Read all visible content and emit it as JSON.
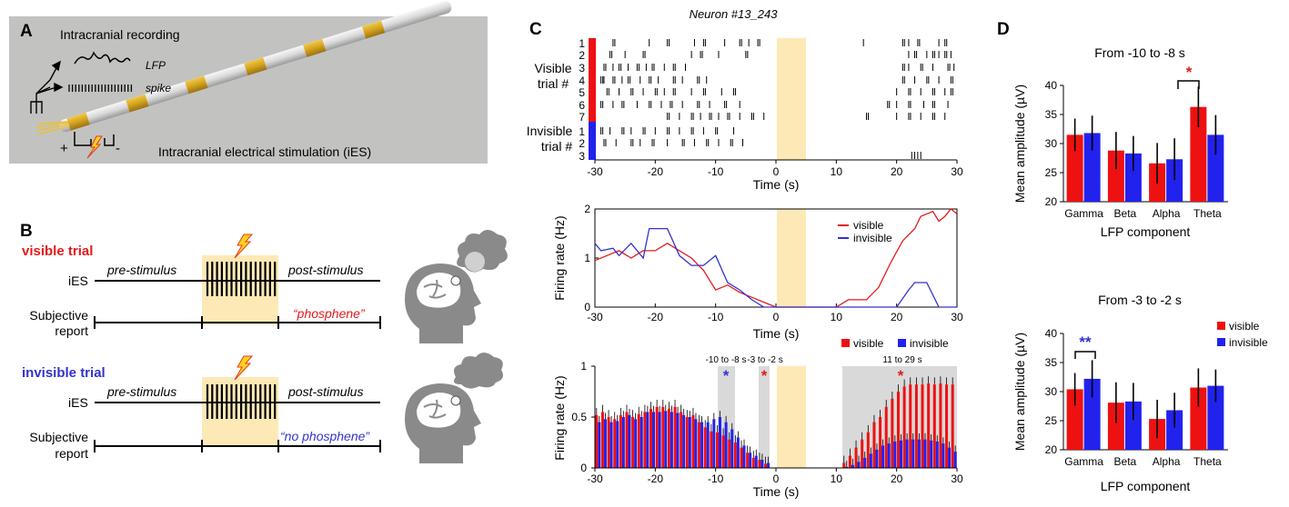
{
  "panels": {
    "a": "A",
    "b": "B",
    "c": "C",
    "d": "D"
  },
  "panel_a": {
    "title": "Intracranial recording",
    "lfp_label": "LFP",
    "spike_label": "spike",
    "stim_label": "Intracranial electrical stimulation (iES)",
    "plus": "+",
    "minus": "-",
    "bg_color": "#c2c3c0",
    "band_color": "#d3a21e"
  },
  "panel_b": {
    "visible_title": "visible trial",
    "invisible_title": "invisible trial",
    "ies_label": "iES",
    "pre_label": "pre-stimulus",
    "post_label": "post-stimulus",
    "report_label_1": "Subjective",
    "report_label_2": "report",
    "visible_report": "“phosphene”",
    "invisible_report": "“no phosphene”",
    "visible_color": "#e31a1c",
    "invisible_color": "#3333cc",
    "stim_bg": "#fde9b6"
  },
  "panel_c": {
    "neuron_title": "Neuron #13_243",
    "raster": {
      "visible_label_1": "Visible",
      "visible_label_2": "trial #",
      "invisible_label_1": "Invisible",
      "invisible_label_2": "trial #",
      "visible_rows": [
        "1",
        "2",
        "3",
        "4",
        "5",
        "6",
        "7"
      ],
      "invisible_rows": [
        "1",
        "2",
        "3"
      ],
      "xlabel": "Time (s)",
      "xticks": [
        -30,
        -20,
        -10,
        0,
        10,
        20,
        30
      ],
      "stim_window": [
        0,
        5
      ]
    },
    "rate_line": {
      "xlabel": "Time (s)",
      "ylabel": "Firing rate (Hz)",
      "yticks": [
        0,
        1,
        2
      ],
      "xticks": [
        -30,
        -20,
        -10,
        0,
        10,
        20,
        30
      ],
      "legend_visible": "visible",
      "legend_invisible": "invisible"
    },
    "rate_bars": {
      "xlabel": "Time (s)",
      "ylabel": "Firing rate (Hz)",
      "yticks": [
        0,
        0.5,
        1
      ],
      "xticks": [
        -30,
        -20,
        -10,
        0,
        10,
        20,
        30
      ],
      "legend_visible": "visible",
      "legend_invisible": "invisible",
      "windows": [
        {
          "label": "-10 to -8 s",
          "range": [
            -10,
            -8
          ],
          "star": "*",
          "star_color": "#3333cc"
        },
        {
          "label": "-3 to -2 s",
          "range": [
            -3,
            -2
          ],
          "star": "*",
          "star_color": "#e31a1c"
        },
        {
          "label": "11 to 29 s",
          "range": [
            11,
            29
          ],
          "star": "*",
          "star_color": "#e31a1c"
        }
      ]
    }
  },
  "panel_d": {
    "top_title": "From -10 to -8 s",
    "bottom_title": "From -3 to -2 s",
    "ylabel": "Mean amplitude (µV)",
    "xlabel": "LFP component",
    "legend_visible": "visible",
    "legend_invisible": "invisible",
    "top_star": "*",
    "bottom_star": "**"
  },
  "chart_data": [
    {
      "type": "line",
      "title": "Neuron #13_243",
      "xlabel": "Time (s)",
      "ylabel": "Firing rate (Hz)",
      "xlim": [
        -30,
        30
      ],
      "ylim": [
        0,
        2
      ],
      "series": [
        {
          "name": "visible",
          "color": "#e31a1c",
          "points": [
            [
              -30,
              0.95
            ],
            [
              -28,
              1.05
            ],
            [
              -26,
              1.15
            ],
            [
              -24,
              1.0
            ],
            [
              -22,
              1.15
            ],
            [
              -20,
              1.15
            ],
            [
              -18,
              1.3
            ],
            [
              -16,
              1.15
            ],
            [
              -14,
              1.0
            ],
            [
              -12,
              0.75
            ],
            [
              -11,
              0.55
            ],
            [
              -10,
              0.35
            ],
            [
              -8,
              0.45
            ],
            [
              -6,
              0.3
            ],
            [
              -4,
              0.2
            ],
            [
              -2,
              0.1
            ],
            [
              0,
              0
            ],
            [
              5,
              0
            ],
            [
              10,
              0
            ],
            [
              12,
              0.15
            ],
            [
              15,
              0.15
            ],
            [
              17,
              0.4
            ],
            [
              19,
              0.9
            ],
            [
              21,
              1.35
            ],
            [
              23,
              1.6
            ],
            [
              24,
              1.85
            ],
            [
              26,
              1.95
            ],
            [
              27,
              1.75
            ],
            [
              28,
              1.85
            ],
            [
              29,
              2.0
            ],
            [
              30,
              1.9
            ]
          ]
        },
        {
          "name": "invisible",
          "color": "#3333cc",
          "points": [
            [
              -30,
              1.3
            ],
            [
              -29,
              1.15
            ],
            [
              -27,
              1.2
            ],
            [
              -26,
              1.05
            ],
            [
              -24,
              1.3
            ],
            [
              -22,
              1.0
            ],
            [
              -21,
              1.6
            ],
            [
              -18,
              1.6
            ],
            [
              -16,
              1.05
            ],
            [
              -14,
              0.85
            ],
            [
              -12,
              0.85
            ],
            [
              -10,
              1.05
            ],
            [
              -8,
              0.5
            ],
            [
              -6,
              0.35
            ],
            [
              -4,
              0.15
            ],
            [
              -2,
              0
            ],
            [
              20,
              0
            ],
            [
              22,
              0.35
            ],
            [
              23,
              0.5
            ],
            [
              25,
              0.5
            ],
            [
              27,
              0
            ],
            [
              30,
              0
            ]
          ]
        }
      ]
    },
    {
      "type": "bar",
      "title": "",
      "xlabel": "Time (s)",
      "ylabel": "Firing rate (Hz)",
      "xlim": [
        -30,
        30
      ],
      "ylim": [
        0,
        1
      ],
      "series": [
        {
          "name": "visible",
          "color": "#e31a1c",
          "x": [
            -29.5,
            -28.5,
            -27.5,
            -26.5,
            -25.5,
            -24.5,
            -23.5,
            -22.5,
            -21.5,
            -20.5,
            -19.5,
            -18.5,
            -17.5,
            -16.5,
            -15.5,
            -14.5,
            -13.5,
            -12.5,
            -11.5,
            -10.5,
            -9.5,
            -8.5,
            -7.5,
            -6.5,
            -5.5,
            -4.5,
            -3.5,
            -2.5,
            -1.5,
            -0.5,
            0.5,
            1.5,
            2.5,
            3.5,
            4.5,
            5.5,
            6.5,
            7.5,
            8.5,
            9.5,
            10.5,
            11.5,
            12.5,
            13.5,
            14.5,
            15.5,
            16.5,
            17.5,
            18.5,
            19.5,
            20.5,
            21.5,
            22.5,
            23.5,
            24.5,
            25.5,
            26.5,
            27.5,
            28.5,
            29.5
          ],
          "values": [
            0.52,
            0.55,
            0.5,
            0.48,
            0.52,
            0.55,
            0.5,
            0.53,
            0.55,
            0.58,
            0.6,
            0.6,
            0.58,
            0.6,
            0.55,
            0.5,
            0.52,
            0.45,
            0.4,
            0.36,
            0.35,
            0.32,
            0.28,
            0.25,
            0.2,
            0.15,
            0.1,
            0.08,
            0.04,
            0,
            0,
            0,
            0,
            0,
            0,
            0,
            0,
            0,
            0,
            0,
            0,
            0.05,
            0.12,
            0.2,
            0.28,
            0.35,
            0.45,
            0.5,
            0.6,
            0.68,
            0.75,
            0.8,
            0.82,
            0.82,
            0.82,
            0.83,
            0.82,
            0.83,
            0.82,
            0.82
          ]
        },
        {
          "name": "invisible",
          "color": "#3333cc",
          "x": [
            -29.5,
            -28.5,
            -27.5,
            -26.5,
            -25.5,
            -24.5,
            -23.5,
            -22.5,
            -21.5,
            -20.5,
            -19.5,
            -18.5,
            -17.5,
            -16.5,
            -15.5,
            -14.5,
            -13.5,
            -12.5,
            -11.5,
            -10.5,
            -9.5,
            -8.5,
            -7.5,
            -6.5,
            -5.5,
            -4.5,
            -3.5,
            -2.5,
            -1.5,
            -0.5,
            0.5,
            1.5,
            2.5,
            3.5,
            4.5,
            5.5,
            6.5,
            7.5,
            8.5,
            9.5,
            10.5,
            11.5,
            12.5,
            13.5,
            14.5,
            15.5,
            16.5,
            17.5,
            18.5,
            19.5,
            20.5,
            21.5,
            22.5,
            23.5,
            24.5,
            25.5,
            26.5,
            27.5,
            28.5,
            29.5
          ],
          "values": [
            0.45,
            0.48,
            0.45,
            0.46,
            0.5,
            0.52,
            0.48,
            0.5,
            0.55,
            0.55,
            0.55,
            0.56,
            0.55,
            0.54,
            0.52,
            0.5,
            0.48,
            0.45,
            0.45,
            0.48,
            0.5,
            0.45,
            0.38,
            0.3,
            0.22,
            0.15,
            0.12,
            0.08,
            0.05,
            0,
            0,
            0,
            0,
            0,
            0,
            0,
            0,
            0,
            0,
            0,
            0,
            0.01,
            0.03,
            0.06,
            0.1,
            0.14,
            0.18,
            0.22,
            0.24,
            0.26,
            0.27,
            0.28,
            0.28,
            0.28,
            0.28,
            0.27,
            0.26,
            0.24,
            0.2,
            0.16
          ]
        }
      ]
    },
    {
      "type": "bar",
      "title": "From -10 to -8 s",
      "xlabel": "LFP component",
      "ylabel": "Mean amplitude (µV)",
      "ylim": [
        20,
        40
      ],
      "categories": [
        "Gamma",
        "Beta",
        "Alpha",
        "Theta"
      ],
      "series": [
        {
          "name": "visible",
          "color": "#ee1111",
          "values": [
            31.5,
            28.8,
            26.6,
            36.3
          ],
          "err": [
            2.8,
            3.2,
            3.5,
            3.5
          ]
        },
        {
          "name": "invisible",
          "color": "#2222ee",
          "values": [
            31.8,
            28.3,
            27.3,
            31.5
          ],
          "err": [
            3.0,
            3.0,
            3.6,
            3.4
          ]
        }
      ]
    },
    {
      "type": "bar",
      "title": "From -3 to -2 s",
      "xlabel": "LFP component",
      "ylabel": "Mean amplitude (µV)",
      "ylim": [
        20,
        40
      ],
      "categories": [
        "Gamma",
        "Beta",
        "Alpha",
        "Theta"
      ],
      "series": [
        {
          "name": "visible",
          "color": "#ee1111",
          "values": [
            30.4,
            28.1,
            25.3,
            30.7
          ],
          "err": [
            2.8,
            3.5,
            3.3,
            3.3
          ]
        },
        {
          "name": "invisible",
          "color": "#2222ee",
          "values": [
            32.2,
            28.3,
            26.8,
            31.0
          ],
          "err": [
            3.2,
            3.2,
            3.0,
            2.8
          ]
        }
      ]
    }
  ]
}
